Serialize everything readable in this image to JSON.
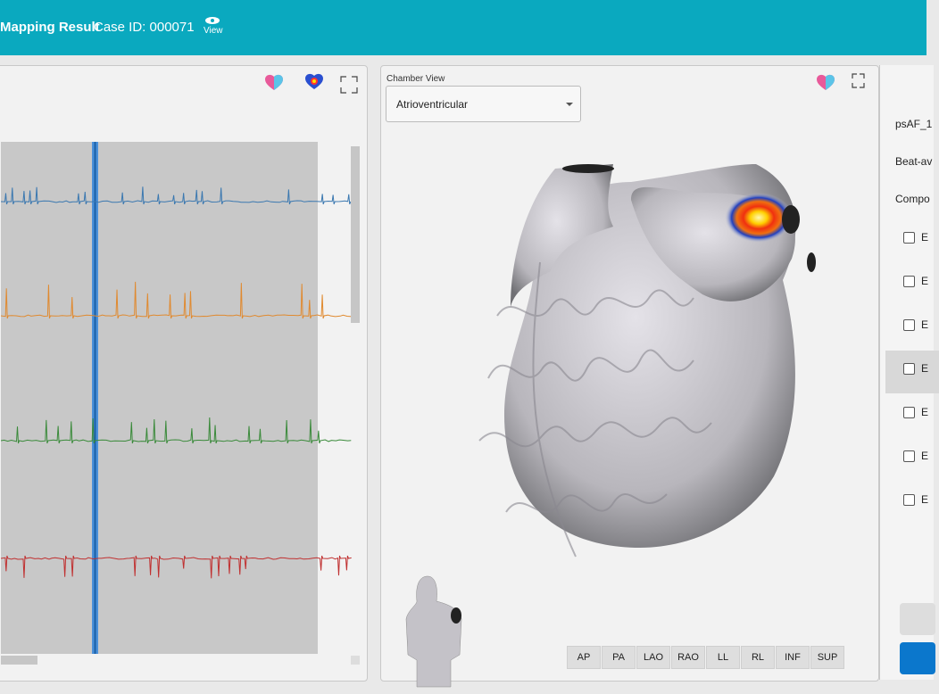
{
  "header": {
    "title": "Mapping Result",
    "case_id": "Case ID: 000071",
    "view": "View"
  },
  "chamber_view": {
    "label": "Chamber View",
    "selected": "Atrioventricular"
  },
  "view_buttons": [
    "AP",
    "PA",
    "LAO",
    "RAO",
    "LL",
    "RL",
    "INF",
    "SUP"
  ],
  "right_panel": {
    "labels": [
      "psAF_1",
      "Beat-av",
      "Compo"
    ],
    "items": [
      "E",
      "E",
      "E",
      "E",
      "E",
      "E",
      "E"
    ]
  }
}
